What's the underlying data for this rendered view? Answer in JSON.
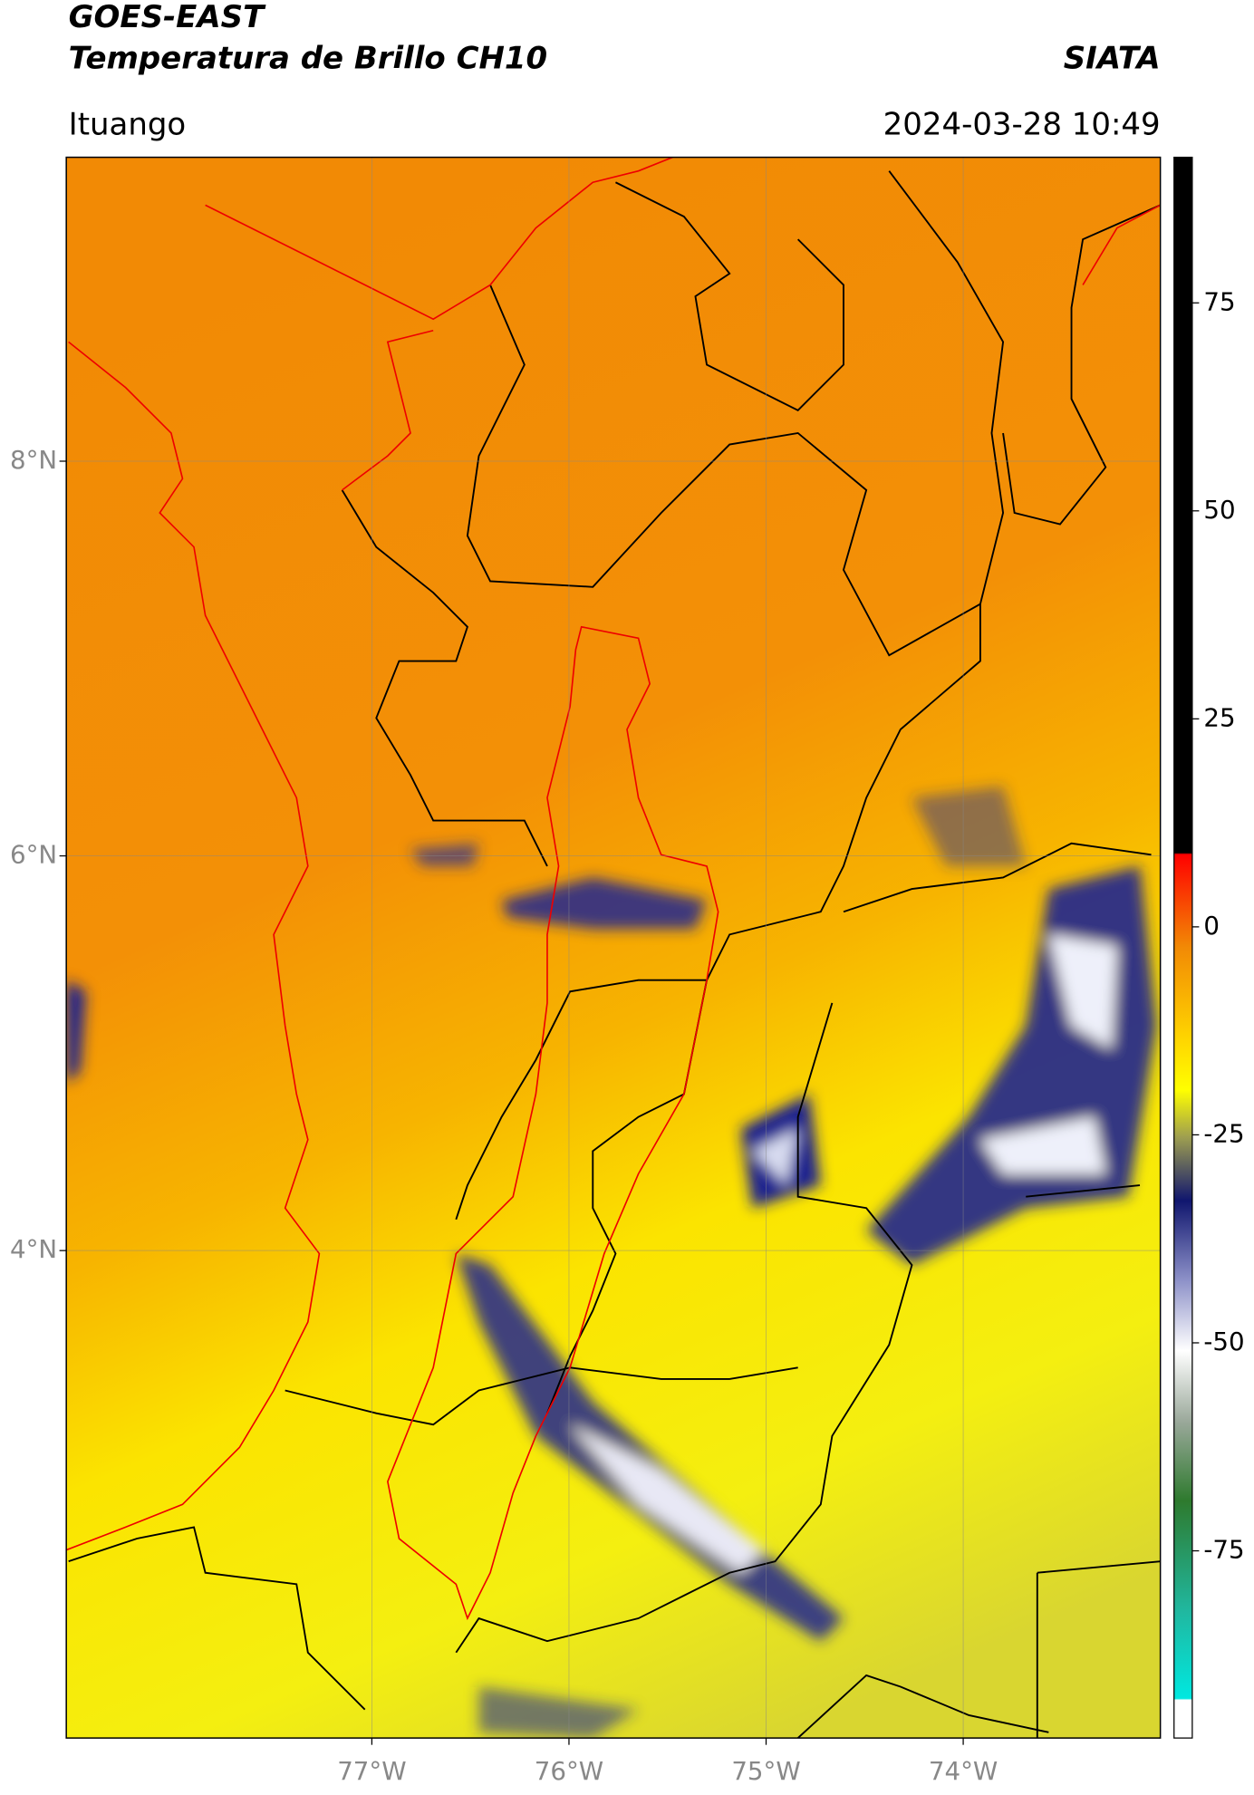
{
  "header": {
    "title_line1": "GOES-EAST",
    "title_line2": "Temperatura de Brillo CH10",
    "source": "SIATA",
    "location": "Ituango",
    "datetime": "2024-03-28 10:49"
  },
  "map": {
    "xlim": [
      -78.55,
      -73.0
    ],
    "ylim": [
      1.53,
      9.54
    ],
    "xticks": [
      {
        "value": -77,
        "label": "77°W"
      },
      {
        "value": -76,
        "label": "76°W"
      },
      {
        "value": -75,
        "label": "75°W"
      },
      {
        "value": -74,
        "label": "74°W"
      }
    ],
    "yticks": [
      {
        "value": 4,
        "label": "4°N"
      },
      {
        "value": 6,
        "label": "6°N"
      },
      {
        "value": 8,
        "label": "8°N"
      }
    ]
  },
  "colorbar": {
    "lim": [
      -97.5,
      92.5
    ],
    "ticks": [
      -75,
      -50,
      -25,
      0,
      25,
      50,
      75
    ]
  }
}
